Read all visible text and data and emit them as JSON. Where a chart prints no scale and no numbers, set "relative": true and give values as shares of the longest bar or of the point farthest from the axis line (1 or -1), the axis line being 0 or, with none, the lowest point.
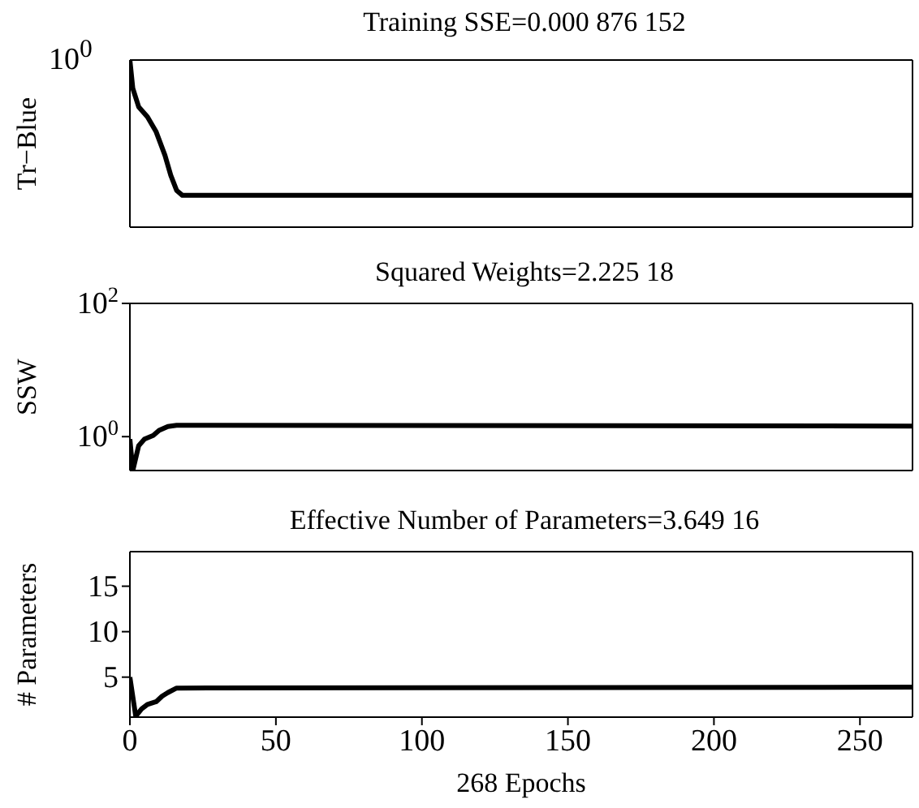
{
  "chart_data": [
    {
      "type": "line",
      "title": "Training SSE=0.000 876 152",
      "ylabel": "Tr−Blue",
      "relative": true,
      "annotations": [
        "10$^{0}$"
      ],
      "xlim": [
        0,
        268
      ],
      "xticks": [
        0,
        50,
        100,
        150,
        200,
        250
      ],
      "tick_labels": false,
      "series": [
        {
          "color": "#000000",
          "x": [
            0,
            1,
            3,
            6,
            9,
            12,
            14,
            16,
            18,
            268
          ],
          "values": [
            1,
            0.83,
            0.72,
            0.66,
            0.57,
            0.43,
            0.31,
            0.22,
            0.19,
            0.19
          ]
        }
      ]
    },
    {
      "type": "line",
      "title": "Squared Weights=2.225 18",
      "ylabel": "SSW",
      "log": "y",
      "ylim": [
        0.31,
        100
      ],
      "yticks": [
        {
          "value": 1,
          "label": "10$^{0}$"
        },
        {
          "value": 100,
          "label": "10$^{2}$"
        }
      ],
      "xlim": [
        0,
        268
      ],
      "xticks": [
        0,
        50,
        100,
        150,
        200,
        250
      ],
      "tick_labels": "y",
      "series": [
        {
          "color": "#000000",
          "x": [
            0,
            1,
            3,
            5,
            8,
            10,
            13,
            16,
            268
          ],
          "values": [
            0.92,
            0.31,
            0.73,
            0.92,
            1.04,
            1.24,
            1.42,
            1.48,
            1.44
          ]
        }
      ]
    },
    {
      "type": "line",
      "title": "Effective Number of Parameters=3.649 16",
      "xlabel": "268 Epochs",
      "ylabel": "# Parameters",
      "ylim": [
        0.6,
        18.8
      ],
      "yticks": [
        5,
        10,
        15
      ],
      "xlim": [
        0,
        268
      ],
      "xticks": [
        0,
        50,
        100,
        150,
        200,
        250
      ],
      "series": [
        {
          "color": "#000000",
          "x": [
            0,
            2,
            4,
            6,
            9,
            11,
            13,
            16,
            268
          ],
          "values": [
            5,
            0.7,
            1.5,
            2,
            2.3,
            2.9,
            3.3,
            3.8,
            3.9
          ]
        }
      ]
    }
  ]
}
